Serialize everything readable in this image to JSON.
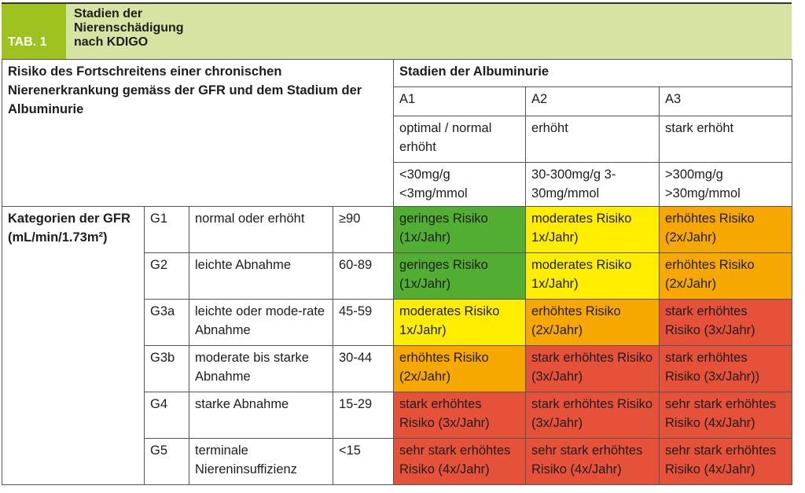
{
  "header": {
    "tab": "TAB. 1",
    "title": "Stadien der Nierenschädigung nach KDIGO"
  },
  "corner": "Risiko des Fortschreitens einer chronischen Nierenerkrankung gemäss der GFR und dem Stadium der Albuminurie",
  "albuminuria": {
    "title": "Stadien der Albuminurie",
    "stages": [
      {
        "code": "A1",
        "label": "optimal / normal erhöht",
        "range": "<30mg/g <3mg/mmol"
      },
      {
        "code": "A2",
        "label": "erhöht",
        "range": "30-300mg/g 3-30mg/mmol"
      },
      {
        "code": "A3",
        "label": "stark erhöht",
        "range": ">300mg/g >30mg/mmol"
      }
    ]
  },
  "gfr_label": "Kategorien der GFR (mL/min/1.73m²)",
  "colors": {
    "green": "#52ae32",
    "yellow": "#ffed00",
    "orange": "#f7a800",
    "red": "#e6513a",
    "band": "#d7e3a3",
    "tab": "#9ec31f"
  },
  "rows": [
    {
      "g": "G1",
      "desc": "normal oder erhöht",
      "range": "≥90",
      "cells": [
        {
          "t": "geringes Risiko (1x/Jahr)",
          "c": "g"
        },
        {
          "t": "moderates Risiko 1x/Jahr)",
          "c": "y"
        },
        {
          "t": "erhöhtes Risiko (2x/Jahr)",
          "c": "o"
        }
      ]
    },
    {
      "g": "G2",
      "desc": "leichte Abnahme",
      "range": "60-89",
      "cells": [
        {
          "t": "geringes Risiko (1x/Jahr)",
          "c": "g"
        },
        {
          "t": "moderates Risiko 1x/Jahr)",
          "c": "y"
        },
        {
          "t": "erhöhtes Risiko (2x/Jahr)",
          "c": "o"
        }
      ]
    },
    {
      "g": "G3a",
      "desc": "leichte oder mode-rate Abnahme",
      "range": "45-59",
      "cells": [
        {
          "t": "moderates Risiko 1x/Jahr)",
          "c": "y"
        },
        {
          "t": "erhöhtes Risiko (2x/Jahr)",
          "c": "o"
        },
        {
          "t": "stark erhöhtes Risiko (3x/Jahr)",
          "c": "r"
        }
      ]
    },
    {
      "g": "G3b",
      "desc": "moderate bis starke Abnahme",
      "range": "30-44",
      "cells": [
        {
          "t": "erhöhtes Risiko (2x/Jahr)",
          "c": "o"
        },
        {
          "t": "stark erhöhtes Risiko (3x/Jahr)",
          "c": "r"
        },
        {
          "t": "stark erhöhtes Risiko (3x/Jahr))",
          "c": "r"
        }
      ]
    },
    {
      "g": "G4",
      "desc": "starke Abnahme",
      "range": "15-29",
      "cells": [
        {
          "t": "stark erhöhtes Risiko (3x/Jahr)",
          "c": "r"
        },
        {
          "t": "stark erhöhtes Risiko (3x/Jahr)",
          "c": "r"
        },
        {
          "t": "sehr stark erhöhtes Risiko (4x/Jahr)",
          "c": "r"
        }
      ]
    },
    {
      "g": "G5",
      "desc": "terminale Niereninsuffizienz",
      "range": "<15",
      "cells": [
        {
          "t": "sehr stark erhöhtes Risiko (4x/Jahr)",
          "c": "r"
        },
        {
          "t": "sehr stark erhöhtes Risiko (4x/Jahr)",
          "c": "r"
        },
        {
          "t": "sehr stark erhöhtes Risiko (4x/Jahr)",
          "c": "r"
        }
      ]
    }
  ]
}
